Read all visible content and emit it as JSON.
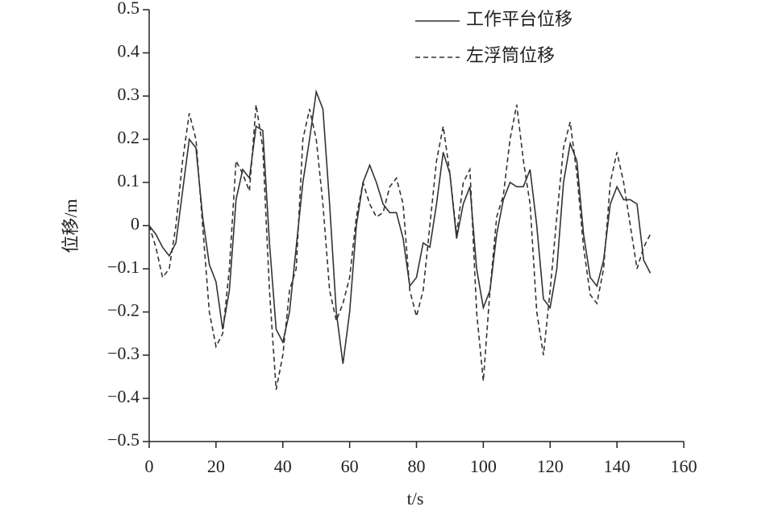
{
  "chart_data": {
    "type": "line",
    "xlabel": "t/s",
    "ylabel": "位移/m",
    "x": [
      0,
      2,
      4,
      6,
      8,
      10,
      12,
      14,
      16,
      18,
      20,
      22,
      24,
      26,
      28,
      30,
      32,
      34,
      36,
      38,
      40,
      42,
      44,
      46,
      48,
      50,
      52,
      54,
      56,
      58,
      60,
      62,
      64,
      66,
      68,
      70,
      72,
      74,
      76,
      78,
      80,
      82,
      84,
      86,
      88,
      90,
      92,
      94,
      96,
      98,
      100,
      102,
      104,
      106,
      108,
      110,
      112,
      114,
      116,
      118,
      120,
      122,
      124,
      126,
      128,
      130,
      132,
      134,
      136,
      138,
      140,
      142,
      144,
      146,
      148,
      150
    ],
    "series": [
      {
        "name": "工作平台位移",
        "color": "#333333",
        "dash": false,
        "values": [
          0,
          -0.02,
          -0.05,
          -0.07,
          -0.04,
          0.08,
          0.2,
          0.18,
          0.02,
          -0.09,
          -0.13,
          -0.24,
          -0.15,
          0.06,
          0.13,
          0.11,
          0.23,
          0.22,
          -0.04,
          -0.24,
          -0.27,
          -0.2,
          -0.05,
          0.1,
          0.2,
          0.31,
          0.27,
          0.05,
          -0.2,
          -0.32,
          -0.2,
          0.0,
          0.1,
          0.14,
          0.1,
          0.05,
          0.03,
          0.03,
          -0.03,
          -0.14,
          -0.12,
          -0.04,
          -0.05,
          0.05,
          0.17,
          0.12,
          -0.03,
          0.05,
          0.09,
          -0.1,
          -0.19,
          -0.15,
          -0.02,
          0.06,
          0.1,
          0.09,
          0.09,
          0.13,
          0.0,
          -0.17,
          -0.19,
          -0.1,
          0.1,
          0.19,
          0.15,
          -0.02,
          -0.12,
          -0.14,
          -0.08,
          0.05,
          0.09,
          0.06,
          0.06,
          0.05,
          -0.08,
          -0.11
        ]
      },
      {
        "name": "左浮筒位移",
        "color": "#333333",
        "dash": true,
        "values": [
          0,
          -0.05,
          -0.12,
          -0.1,
          0.0,
          0.15,
          0.26,
          0.2,
          0.0,
          -0.2,
          -0.28,
          -0.25,
          -0.1,
          0.15,
          0.12,
          0.08,
          0.28,
          0.18,
          -0.15,
          -0.38,
          -0.3,
          -0.15,
          -0.1,
          0.2,
          0.27,
          0.2,
          0.05,
          -0.15,
          -0.22,
          -0.18,
          -0.12,
          0.02,
          0.1,
          0.05,
          0.02,
          0.03,
          0.09,
          0.11,
          0.05,
          -0.15,
          -0.21,
          -0.15,
          0.0,
          0.15,
          0.23,
          0.12,
          -0.02,
          0.1,
          0.13,
          -0.2,
          -0.36,
          -0.15,
          0.02,
          0.07,
          0.2,
          0.28,
          0.15,
          0.05,
          -0.2,
          -0.3,
          -0.15,
          0.02,
          0.18,
          0.24,
          0.12,
          -0.05,
          -0.16,
          -0.18,
          -0.1,
          0.1,
          0.17,
          0.1,
          0.0,
          -0.1,
          -0.05,
          -0.02
        ]
      }
    ],
    "xlim": [
      0,
      160
    ],
    "xticks": [
      0,
      20,
      40,
      60,
      80,
      100,
      120,
      140,
      160
    ],
    "ylim": [
      -0.5,
      0.5
    ],
    "yticks": [
      {
        "value": -0.5,
        "label": "−0.5"
      },
      {
        "value": -0.4,
        "label": "−0.4"
      },
      {
        "value": -0.3,
        "label": "−0.3"
      },
      {
        "value": -0.2,
        "label": "−0.2"
      },
      {
        "value": -0.1,
        "label": "−0.1"
      },
      0,
      0.1,
      0.2,
      0.3,
      0.4,
      0.5
    ],
    "grid": false,
    "legend": "top-right"
  }
}
